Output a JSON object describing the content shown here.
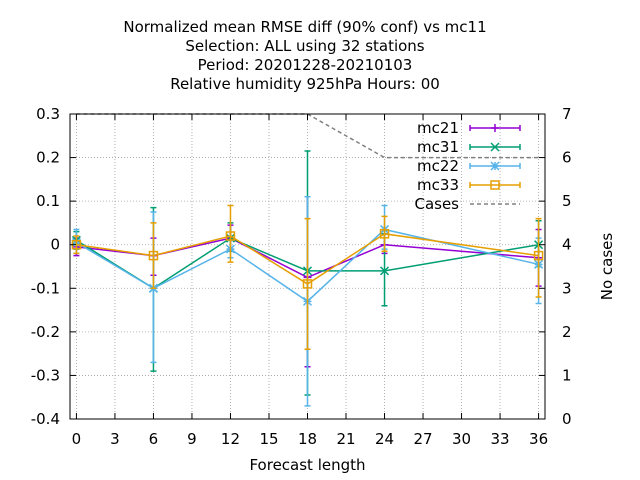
{
  "chart_data": {
    "type": "line",
    "title_lines": [
      "Normalized mean RMSE diff (90% conf) vs mc11",
      "Selection: ALL using    32 stations",
      "Period: 20201228-20210103",
      "Relative humidity 925hPa   Hours:  00"
    ],
    "xlabel": "Forecast length",
    "ylabel": "",
    "y2label": "No cases",
    "xlim": [
      -0.5,
      36.5
    ],
    "ylim": [
      -0.4,
      0.3
    ],
    "y2lim": [
      0,
      7
    ],
    "xticks": [
      "0",
      "3",
      "6",
      "9",
      "12",
      "15",
      "18",
      "21",
      "24",
      "27",
      "30",
      "33",
      "36"
    ],
    "yticks": [
      "0.3",
      "0.2",
      "0.1",
      "0",
      "-0.1",
      "-0.2",
      "-0.3",
      "-0.4"
    ],
    "y2ticks": [
      "7",
      "6",
      "5",
      "4",
      "3",
      "2",
      "1",
      "0"
    ],
    "grid": true,
    "legend_position": "top-right",
    "x": [
      0,
      6,
      12,
      18,
      24,
      36
    ],
    "series": [
      {
        "name": "mc21",
        "color": "#9400d3",
        "marker": "plus",
        "values": [
          -0.005,
          -0.025,
          0.015,
          -0.075,
          0.0,
          -0.03
        ],
        "err_low": [
          -0.025,
          -0.07,
          -0.01,
          -0.28,
          -0.02,
          -0.095
        ],
        "err_high": [
          0.015,
          0.015,
          0.045,
          0.11,
          0.025,
          0.035
        ]
      },
      {
        "name": "mc31",
        "color": "#009e73",
        "marker": "cross",
        "values": [
          0.01,
          -0.1,
          0.015,
          -0.06,
          -0.06,
          0.0
        ],
        "err_low": [
          -0.01,
          -0.29,
          -0.015,
          -0.345,
          -0.14,
          -0.05
        ],
        "err_high": [
          0.03,
          0.085,
          0.05,
          0.215,
          0.025,
          0.055
        ]
      },
      {
        "name": "mc22",
        "color": "#56b4e9",
        "marker": "star",
        "values": [
          0.005,
          -0.1,
          -0.01,
          -0.13,
          0.035,
          -0.045
        ],
        "err_low": [
          -0.02,
          -0.27,
          -0.03,
          -0.37,
          -0.01,
          -0.135
        ],
        "err_high": [
          0.035,
          0.075,
          0.01,
          0.11,
          0.09,
          0.015
        ]
      },
      {
        "name": "mc33",
        "color": "#e69f00",
        "marker": "square",
        "values": [
          0.0,
          -0.025,
          0.02,
          -0.09,
          0.025,
          -0.025
        ],
        "err_low": [
          -0.02,
          -0.1,
          -0.04,
          -0.24,
          -0.015,
          -0.12
        ],
        "err_high": [
          0.02,
          0.05,
          0.09,
          0.06,
          0.065,
          0.06
        ]
      }
    ],
    "cases": {
      "name": "Cases",
      "color": "#808080",
      "axis": "y2",
      "x": [
        0,
        6,
        12,
        18,
        24,
        36
      ],
      "values": [
        7,
        7,
        7,
        7,
        6,
        6
      ]
    }
  }
}
